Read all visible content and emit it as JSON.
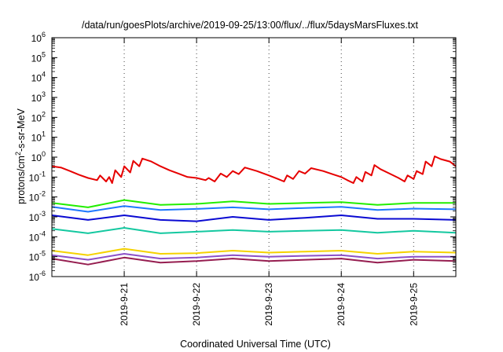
{
  "chart_data": {
    "type": "line",
    "title": "/data/run/goesPlots/archive/2019-09-25/13:00/flux/../flux/5daysMarsFluxes.txt",
    "xlabel": "Coordinated Universal Time (UTC)",
    "ylabel": {
      "base": "protons/cm",
      "sup": "2",
      "rest": "-s-sr-MeV"
    },
    "x_scale": "time",
    "xlim": [
      "2019-09-20T00:00",
      "2019-09-25T14:00"
    ],
    "y_scale": "log",
    "ylim": [
      1e-06,
      1000000.0
    ],
    "grid": "vertical dotted at x ticks",
    "legend": "none",
    "x_ticks": [
      {
        "t": "2019-09-21T00:00",
        "label": "2019-9-21"
      },
      {
        "t": "2019-09-22T00:00",
        "label": "2019-9-22"
      },
      {
        "t": "2019-09-23T00:00",
        "label": "2019-9-23"
      },
      {
        "t": "2019-09-24T00:00",
        "label": "2019-9-24"
      },
      {
        "t": "2019-09-25T00:00",
        "label": "2019-9-25"
      }
    ],
    "y_ticks": [
      {
        "exp": -6,
        "label": "10",
        "sup": "-6"
      },
      {
        "exp": -5,
        "label": "10",
        "sup": "-5"
      },
      {
        "exp": -4,
        "label": "10",
        "sup": "-4"
      },
      {
        "exp": -3,
        "label": "10",
        "sup": "-3"
      },
      {
        "exp": -2,
        "label": "10",
        "sup": "-2"
      },
      {
        "exp": -1,
        "label": "10",
        "sup": "-1"
      },
      {
        "exp": 0,
        "label": "10",
        "sup": "0"
      },
      {
        "exp": 1,
        "label": "10",
        "sup": "1"
      },
      {
        "exp": 2,
        "label": "10",
        "sup": "2"
      },
      {
        "exp": 3,
        "label": "10",
        "sup": "3"
      },
      {
        "exp": 4,
        "label": "10",
        "sup": "4"
      },
      {
        "exp": 5,
        "label": "10",
        "sup": "5"
      },
      {
        "exp": 6,
        "label": "10",
        "sup": "6"
      }
    ],
    "series": [
      {
        "color": "#e60000",
        "values": [
          [
            "2019-09-20T00:00",
            0.35
          ],
          [
            "2019-09-20T03:00",
            0.3
          ],
          [
            "2019-09-20T06:00",
            0.2
          ],
          [
            "2019-09-20T09:00",
            0.13
          ],
          [
            "2019-09-20T12:00",
            0.09
          ],
          [
            "2019-09-20T15:00",
            0.07
          ],
          [
            "2019-09-20T16:00",
            0.12
          ],
          [
            "2019-09-20T18:00",
            0.06
          ],
          [
            "2019-09-20T19:00",
            0.1
          ],
          [
            "2019-09-20T20:00",
            0.05
          ],
          [
            "2019-09-20T21:00",
            0.22
          ],
          [
            "2019-09-20T23:00",
            0.1
          ],
          [
            "2019-09-21T00:00",
            0.35
          ],
          [
            "2019-09-21T02:00",
            0.17
          ],
          [
            "2019-09-21T03:00",
            0.65
          ],
          [
            "2019-09-21T05:00",
            0.35
          ],
          [
            "2019-09-21T06:00",
            0.85
          ],
          [
            "2019-09-21T09:00",
            0.6
          ],
          [
            "2019-09-21T12:00",
            0.35
          ],
          [
            "2019-09-21T15:00",
            0.22
          ],
          [
            "2019-09-21T18:00",
            0.15
          ],
          [
            "2019-09-21T21:00",
            0.1
          ],
          [
            "2019-09-22T00:00",
            0.09
          ],
          [
            "2019-09-22T03:00",
            0.07
          ],
          [
            "2019-09-22T04:00",
            0.09
          ],
          [
            "2019-09-22T06:00",
            0.06
          ],
          [
            "2019-09-22T08:00",
            0.15
          ],
          [
            "2019-09-22T10:00",
            0.1
          ],
          [
            "2019-09-22T12:00",
            0.2
          ],
          [
            "2019-09-22T14:00",
            0.14
          ],
          [
            "2019-09-22T16:00",
            0.3
          ],
          [
            "2019-09-22T20:00",
            0.2
          ],
          [
            "2019-09-23T00:00",
            0.12
          ],
          [
            "2019-09-23T03:00",
            0.08
          ],
          [
            "2019-09-23T05:00",
            0.06
          ],
          [
            "2019-09-23T06:00",
            0.12
          ],
          [
            "2019-09-23T08:00",
            0.08
          ],
          [
            "2019-09-23T10:00",
            0.2
          ],
          [
            "2019-09-23T12:00",
            0.15
          ],
          [
            "2019-09-23T14:00",
            0.28
          ],
          [
            "2019-09-23T18:00",
            0.2
          ],
          [
            "2019-09-23T21:00",
            0.14
          ],
          [
            "2019-09-24T00:00",
            0.1
          ],
          [
            "2019-09-24T02:00",
            0.07
          ],
          [
            "2019-09-24T04:00",
            0.05
          ],
          [
            "2019-09-24T05:00",
            0.1
          ],
          [
            "2019-09-24T07:00",
            0.06
          ],
          [
            "2019-09-24T08:00",
            0.18
          ],
          [
            "2019-09-24T10:00",
            0.12
          ],
          [
            "2019-09-24T11:00",
            0.4
          ],
          [
            "2019-09-24T13:00",
            0.25
          ],
          [
            "2019-09-24T16:00",
            0.15
          ],
          [
            "2019-09-24T19:00",
            0.09
          ],
          [
            "2019-09-24T21:00",
            0.06
          ],
          [
            "2019-09-24T22:00",
            0.12
          ],
          [
            "2019-09-25T00:00",
            0.08
          ],
          [
            "2019-09-25T01:00",
            0.2
          ],
          [
            "2019-09-25T03:00",
            0.14
          ],
          [
            "2019-09-25T04:00",
            0.6
          ],
          [
            "2019-09-25T06:00",
            0.35
          ],
          [
            "2019-09-25T07:00",
            1.1
          ],
          [
            "2019-09-25T09:00",
            0.8
          ],
          [
            "2019-09-25T12:00",
            0.6
          ],
          [
            "2019-09-25T14:00",
            0.35
          ]
        ]
      },
      {
        "color": "#22ee00",
        "values": [
          [
            "2019-09-20T00:00",
            0.005
          ],
          [
            "2019-09-20T12:00",
            0.003
          ],
          [
            "2019-09-21T00:00",
            0.007
          ],
          [
            "2019-09-21T12:00",
            0.004
          ],
          [
            "2019-09-22T00:00",
            0.0045
          ],
          [
            "2019-09-22T12:00",
            0.006
          ],
          [
            "2019-09-23T00:00",
            0.0045
          ],
          [
            "2019-09-23T12:00",
            0.005
          ],
          [
            "2019-09-24T00:00",
            0.0055
          ],
          [
            "2019-09-24T12:00",
            0.004
          ],
          [
            "2019-09-25T00:00",
            0.005
          ],
          [
            "2019-09-25T14:00",
            0.005
          ]
        ]
      },
      {
        "color": "#1e78ff",
        "values": [
          [
            "2019-09-20T00:00",
            0.0032
          ],
          [
            "2019-09-20T12:00",
            0.0018
          ],
          [
            "2019-09-21T00:00",
            0.0035
          ],
          [
            "2019-09-21T12:00",
            0.0022
          ],
          [
            "2019-09-22T00:00",
            0.0025
          ],
          [
            "2019-09-22T12:00",
            0.003
          ],
          [
            "2019-09-23T00:00",
            0.0024
          ],
          [
            "2019-09-23T12:00",
            0.0028
          ],
          [
            "2019-09-24T00:00",
            0.0032
          ],
          [
            "2019-09-24T12:00",
            0.0022
          ],
          [
            "2019-09-25T00:00",
            0.0026
          ],
          [
            "2019-09-25T14:00",
            0.0024
          ]
        ]
      },
      {
        "color": "#0a0ad2",
        "values": [
          [
            "2019-09-20T00:00",
            0.0012
          ],
          [
            "2019-09-20T12:00",
            0.0007
          ],
          [
            "2019-09-21T00:00",
            0.0012
          ],
          [
            "2019-09-21T12:00",
            0.0007
          ],
          [
            "2019-09-22T00:00",
            0.0006
          ],
          [
            "2019-09-22T12:00",
            0.001
          ],
          [
            "2019-09-23T00:00",
            0.0007
          ],
          [
            "2019-09-23T12:00",
            0.0009
          ],
          [
            "2019-09-24T00:00",
            0.0012
          ],
          [
            "2019-09-24T12:00",
            0.0008
          ],
          [
            "2019-09-25T00:00",
            0.0008
          ],
          [
            "2019-09-25T14:00",
            0.0007
          ]
        ]
      },
      {
        "color": "#14c8a0",
        "values": [
          [
            "2019-09-20T00:00",
            0.00025
          ],
          [
            "2019-09-20T12:00",
            0.00015
          ],
          [
            "2019-09-21T00:00",
            0.00028
          ],
          [
            "2019-09-21T12:00",
            0.00015
          ],
          [
            "2019-09-22T00:00",
            0.00018
          ],
          [
            "2019-09-22T12:00",
            0.00022
          ],
          [
            "2019-09-23T00:00",
            0.00018
          ],
          [
            "2019-09-23T12:00",
            0.0002
          ],
          [
            "2019-09-24T00:00",
            0.00022
          ],
          [
            "2019-09-24T12:00",
            0.00016
          ],
          [
            "2019-09-25T00:00",
            0.0002
          ],
          [
            "2019-09-25T14:00",
            0.00016
          ]
        ]
      },
      {
        "color": "#f5d200",
        "values": [
          [
            "2019-09-20T00:00",
            2e-05
          ],
          [
            "2019-09-20T12:00",
            1.2e-05
          ],
          [
            "2019-09-21T00:00",
            2.5e-05
          ],
          [
            "2019-09-21T12:00",
            1.4e-05
          ],
          [
            "2019-09-22T00:00",
            1.5e-05
          ],
          [
            "2019-09-22T12:00",
            2e-05
          ],
          [
            "2019-09-23T00:00",
            1.6e-05
          ],
          [
            "2019-09-23T12:00",
            1.8e-05
          ],
          [
            "2019-09-24T00:00",
            2e-05
          ],
          [
            "2019-09-24T12:00",
            1.4e-05
          ],
          [
            "2019-09-25T00:00",
            1.8e-05
          ],
          [
            "2019-09-25T14:00",
            1.6e-05
          ]
        ]
      },
      {
        "color": "#8c50c8",
        "values": [
          [
            "2019-09-20T00:00",
            1.2e-05
          ],
          [
            "2019-09-20T12:00",
            7e-06
          ],
          [
            "2019-09-21T00:00",
            1.4e-05
          ],
          [
            "2019-09-21T12:00",
            8e-06
          ],
          [
            "2019-09-22T00:00",
            9e-06
          ],
          [
            "2019-09-22T12:00",
            1.2e-05
          ],
          [
            "2019-09-23T00:00",
            1e-05
          ],
          [
            "2019-09-23T12:00",
            1.1e-05
          ],
          [
            "2019-09-24T00:00",
            1.2e-05
          ],
          [
            "2019-09-24T12:00",
            8e-06
          ],
          [
            "2019-09-25T00:00",
            1e-05
          ],
          [
            "2019-09-25T14:00",
            1e-05
          ]
        ]
      },
      {
        "color": "#961e50",
        "values": [
          [
            "2019-09-20T00:00",
            8e-06
          ],
          [
            "2019-09-20T12:00",
            4e-06
          ],
          [
            "2019-09-21T00:00",
            9e-06
          ],
          [
            "2019-09-21T12:00",
            5e-06
          ],
          [
            "2019-09-22T00:00",
            6e-06
          ],
          [
            "2019-09-22T12:00",
            8e-06
          ],
          [
            "2019-09-23T00:00",
            6e-06
          ],
          [
            "2019-09-23T12:00",
            7e-06
          ],
          [
            "2019-09-24T00:00",
            8e-06
          ],
          [
            "2019-09-24T12:00",
            5e-06
          ],
          [
            "2019-09-25T00:00",
            7e-06
          ],
          [
            "2019-09-25T14:00",
            6e-06
          ]
        ]
      }
    ]
  }
}
